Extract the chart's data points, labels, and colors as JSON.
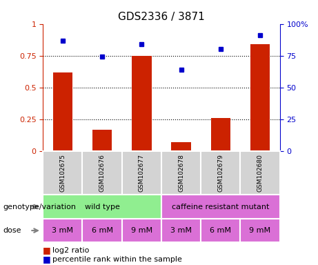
{
  "title": "GDS2336 / 3871",
  "samples": [
    "GSM102675",
    "GSM102676",
    "GSM102677",
    "GSM102678",
    "GSM102679",
    "GSM102680"
  ],
  "log2_ratio": [
    0.62,
    0.17,
    0.75,
    0.07,
    0.26,
    0.84
  ],
  "percentile_rank": [
    0.87,
    0.74,
    0.84,
    0.64,
    0.8,
    0.91
  ],
  "bar_color": "#cc2200",
  "dot_color": "#0000cc",
  "ylim_left": [
    0,
    1.0
  ],
  "ylim_right": [
    0,
    100
  ],
  "yticks_left": [
    0,
    0.25,
    0.5,
    0.75,
    1.0
  ],
  "ytick_labels_left": [
    "0",
    "0.25",
    "0.5",
    "0.75",
    "1"
  ],
  "yticks_right": [
    0,
    25,
    50,
    75,
    100
  ],
  "ytick_labels_right": [
    "0",
    "25",
    "50",
    "75",
    "100%"
  ],
  "genotype_groups": [
    {
      "label": "wild type",
      "start": 0,
      "end": 3,
      "color": "#90ee90"
    },
    {
      "label": "caffeine resistant mutant",
      "start": 3,
      "end": 6,
      "color": "#da70d6"
    }
  ],
  "dose_labels": [
    "3 mM",
    "6 mM",
    "9 mM",
    "3 mM",
    "6 mM",
    "9 mM"
  ],
  "sample_bg_color": "#d3d3d3",
  "legend_red_label": "log2 ratio",
  "legend_blue_label": "percentile rank within the sample",
  "label_genotype": "genotype/variation",
  "label_dose": "dose"
}
